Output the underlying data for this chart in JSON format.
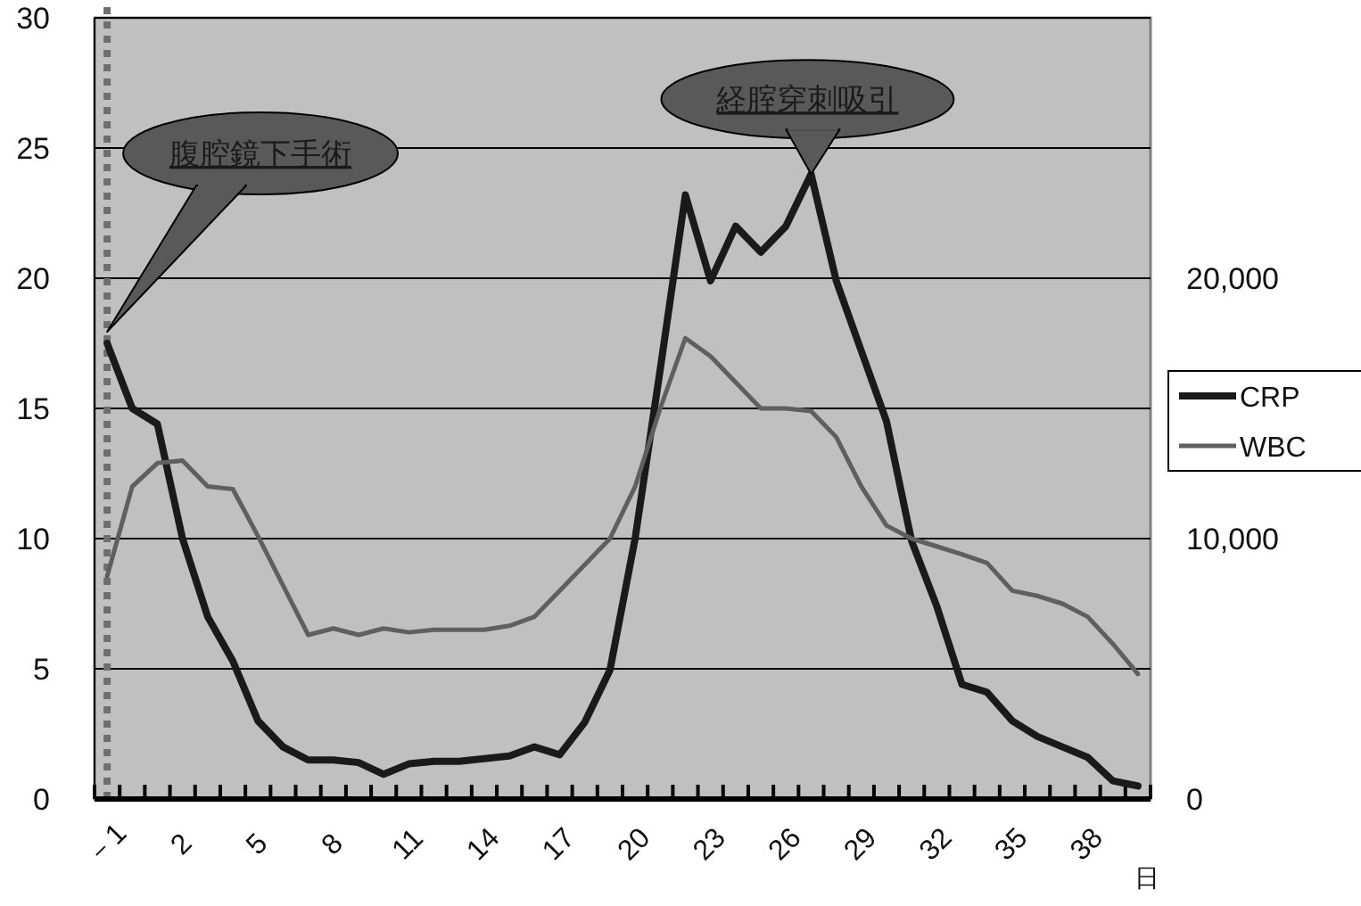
{
  "chart_data": {
    "type": "line",
    "categories": [
      "－1",
      null,
      null,
      "2",
      null,
      null,
      "5",
      null,
      null,
      "8",
      null,
      null,
      "11",
      null,
      null,
      "14",
      null,
      null,
      "17",
      null,
      null,
      "20",
      null,
      null,
      "23",
      null,
      null,
      "26",
      null,
      null,
      "29",
      null,
      null,
      "32",
      null,
      null,
      "35",
      null,
      null,
      "38",
      null,
      null
    ],
    "xlabel": "日",
    "series": [
      {
        "name": "CRP",
        "color": "#1a1a1a",
        "values": [
          17.5,
          15.0,
          14.4,
          10.0,
          7.0,
          5.3,
          3.0,
          2.0,
          1.5,
          1.5,
          1.4,
          0.95,
          1.35,
          1.45,
          1.45,
          1.55,
          1.65,
          2.0,
          1.7,
          2.95,
          4.95,
          10.0,
          16.5,
          23.2,
          19.9,
          22.0,
          21.0,
          22.0,
          24.0,
          19.9,
          17.2,
          14.5,
          9.9,
          7.4,
          4.4,
          4.1,
          3.0,
          2.4,
          2.0,
          1.6,
          0.7,
          0.5
        ]
      },
      {
        "name": "WBC",
        "color": "#5f5f5f",
        "axis": "y2",
        "values": [
          8550,
          12000,
          12900,
          13000,
          12000,
          11900,
          10100,
          8200,
          6300,
          6550,
          6300,
          6550,
          6400,
          6500,
          6500,
          6500,
          6650,
          7000,
          8000,
          9000,
          10000,
          12000,
          15000,
          17700,
          17000,
          16000,
          15000,
          15000,
          14900,
          13900,
          12000,
          10500,
          10000,
          9700,
          9400,
          9060,
          8000,
          7800,
          7500,
          7000,
          5960,
          4800
        ]
      }
    ],
    "ylim": [
      0,
      30
    ],
    "yticks": [
      0,
      5,
      10,
      15,
      20,
      25,
      30
    ],
    "y2lim": [
      0,
      30000
    ],
    "y2ticks": [
      0,
      {
        "value": 10000,
        "label": "10,000"
      },
      {
        "value": 20000,
        "label": "20,000"
      }
    ],
    "grid": "y",
    "legend": "right",
    "ref_lines": [
      {
        "axis": "x",
        "value": "－1",
        "color": "#6e6e6e",
        "line_style": "dotted"
      }
    ],
    "annotations": [
      "腹腔鏡下手術",
      {
        "text": "経腟穿刺吸引",
        "y": 24.0
      }
    ]
  }
}
